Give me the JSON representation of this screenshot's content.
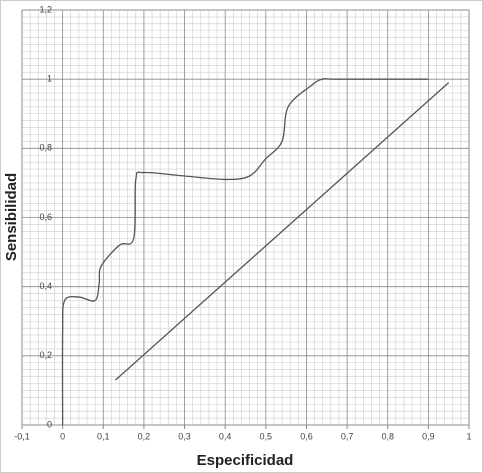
{
  "chart_data": {
    "type": "line",
    "x_label": "Especificidad",
    "y_label": "Sensibilidad",
    "xlim": [
      -0.1,
      1
    ],
    "ylim": [
      0,
      1.2
    ],
    "xticks": [
      {
        "value": -0.1,
        "label": "-0,1"
      },
      0,
      {
        "value": 0.1,
        "label": "0,1"
      },
      {
        "value": 0.2,
        "label": "0,2"
      },
      {
        "value": 0.3,
        "label": "0,3"
      },
      {
        "value": 0.4,
        "label": "0,4"
      },
      {
        "value": 0.5,
        "label": "0,5"
      },
      {
        "value": 0.6,
        "label": "0,6"
      },
      {
        "value": 0.7,
        "label": "0,7"
      },
      {
        "value": 0.8,
        "label": "0,8"
      },
      {
        "value": 0.9,
        "label": "0,9"
      },
      1
    ],
    "yticks": [
      0,
      {
        "value": 0.2,
        "label": "0,2"
      },
      {
        "value": 0.4,
        "label": "0,4"
      },
      {
        "value": 0.6,
        "label": "0,6"
      },
      {
        "value": 0.8,
        "label": "0,8"
      },
      1,
      {
        "value": 1.2,
        "label": "1,2"
      }
    ],
    "grid": true,
    "series": [
      {
        "color": "#555555",
        "x": [
          0,
          0,
          0.005,
          0.04,
          0.08,
          0.09,
          0.095,
          0.14,
          0.175,
          0.18,
          0.2,
          0.3,
          0.4,
          0.46,
          0.5,
          0.54,
          0.555,
          0.61,
          0.64,
          0.68,
          0.9
        ],
        "values": [
          0,
          0.27,
          0.36,
          0.37,
          0.36,
          0.41,
          0.46,
          0.52,
          0.54,
          0.71,
          0.73,
          0.72,
          0.71,
          0.72,
          0.77,
          0.82,
          0.92,
          0.98,
          1.0,
          1.0,
          1.0
        ]
      },
      {
        "color": "#555555",
        "x": [
          0.13,
          0.95
        ],
        "values": [
          0.13,
          0.99
        ]
      }
    ]
  }
}
